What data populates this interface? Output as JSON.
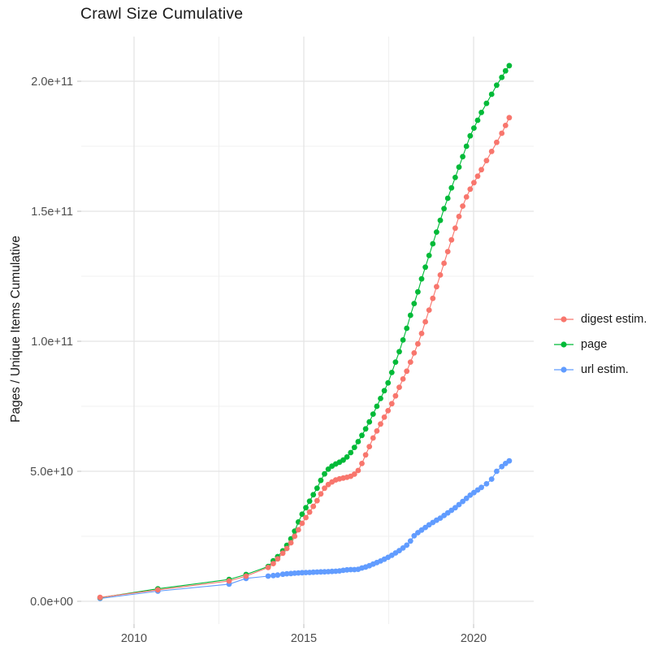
{
  "chart_data": {
    "type": "scatter",
    "title": "Crawl Size Cumulative",
    "xlabel": "",
    "ylabel": "Pages / Unique Items Cumulative",
    "legend_position": "right",
    "grid": true,
    "xlim": [
      2008.45,
      2021.77
    ],
    "ylim": [
      -10000000000,
      217000000000
    ],
    "x_ticks": [
      2010,
      2015,
      2020
    ],
    "x_tick_labels": [
      "2010",
      "2015",
      "2020"
    ],
    "x_minor_ticks": [
      2012.5,
      2017.5
    ],
    "y_tick_values": [
      0,
      50000000000,
      100000000000,
      150000000000,
      200000000000
    ],
    "y_ticks": [
      "0.0e+00",
      "5.0e+10",
      "1.0e+11",
      "1.5e+11",
      "2.0e+11"
    ],
    "y_minor_ticks": [
      25000000000,
      75000000000,
      125000000000,
      175000000000
    ],
    "series": [
      {
        "name": "digest estim.",
        "color": "#F8766D",
        "points": [
          [
            2009.0,
            1500000000.0
          ],
          [
            2010.7,
            4400000000.0
          ],
          [
            2012.8,
            7800000000.0
          ],
          [
            2013.3,
            9700000000.0
          ],
          [
            2013.95,
            13000000000.0
          ],
          [
            2014.1,
            14500000000.0
          ],
          [
            2014.23,
            16300000000.0
          ],
          [
            2014.38,
            18500000000.0
          ],
          [
            2014.5,
            20300000000.0
          ],
          [
            2014.62,
            22500000000.0
          ],
          [
            2014.73,
            25000000000.0
          ],
          [
            2014.84,
            27500000000.0
          ],
          [
            2014.95,
            30000000000.0
          ],
          [
            2015.06,
            32200000000.0
          ],
          [
            2015.17,
            34300000000.0
          ],
          [
            2015.28,
            36500000000.0
          ],
          [
            2015.39,
            38700000000.0
          ],
          [
            2015.5,
            41300000000.0
          ],
          [
            2015.61,
            43500000000.0
          ],
          [
            2015.72,
            44900000000.0
          ],
          [
            2015.83,
            45900000000.0
          ],
          [
            2015.94,
            46700000000.0
          ],
          [
            2016.05,
            47100000000.0
          ],
          [
            2016.16,
            47400000000.0
          ],
          [
            2016.27,
            47700000000.0
          ],
          [
            2016.38,
            48100000000.0
          ],
          [
            2016.49,
            48900000000.0
          ],
          [
            2016.6,
            50300000000.0
          ],
          [
            2016.71,
            53000000000.0
          ],
          [
            2016.82,
            56300000000.0
          ],
          [
            2016.93,
            59500000000.0
          ],
          [
            2017.04,
            62800000000.0
          ],
          [
            2017.15,
            65500000000.0
          ],
          [
            2017.26,
            68200000000.0
          ],
          [
            2017.37,
            70800000000.0
          ],
          [
            2017.48,
            73300000000.0
          ],
          [
            2017.59,
            76000000000.0
          ],
          [
            2017.7,
            79000000000.0
          ],
          [
            2017.81,
            82300000000.0
          ],
          [
            2017.92,
            85500000000.0
          ],
          [
            2018.03,
            88500000000.0
          ],
          [
            2018.14,
            92000000000.0
          ],
          [
            2018.25,
            95500000000.0
          ],
          [
            2018.36,
            99000000000.0
          ],
          [
            2018.47,
            103000000000.0
          ],
          [
            2018.58,
            107500000000.0
          ],
          [
            2018.69,
            112000000000.0
          ],
          [
            2018.8,
            116500000000.0
          ],
          [
            2018.91,
            121000000000.0
          ],
          [
            2019.02,
            125500000000.0
          ],
          [
            2019.13,
            130000000000.0
          ],
          [
            2019.24,
            134500000000.0
          ],
          [
            2019.35,
            139000000000.0
          ],
          [
            2019.46,
            143500000000.0
          ],
          [
            2019.57,
            148000000000.0
          ],
          [
            2019.68,
            152000000000.0
          ],
          [
            2019.79,
            155500000000.0
          ],
          [
            2019.9,
            158500000000.0
          ],
          [
            2020.01,
            161000000000.0
          ],
          [
            2020.12,
            163500000000.0
          ],
          [
            2020.23,
            166000000000.0
          ],
          [
            2020.38,
            169500000000.0
          ],
          [
            2020.53,
            173000000000.0
          ],
          [
            2020.68,
            176500000000.0
          ],
          [
            2020.83,
            180000000000.0
          ],
          [
            2020.94,
            183000000000.0
          ],
          [
            2021.05,
            186000000000.0
          ]
        ]
      },
      {
        "name": "page",
        "color": "#00BA38",
        "points": [
          [
            2009.0,
            1400000000.0
          ],
          [
            2010.7,
            4800000000.0
          ],
          [
            2012.8,
            8400000000.0
          ],
          [
            2013.3,
            10300000000.0
          ],
          [
            2013.95,
            13400000000.0
          ],
          [
            2014.1,
            15600000000.0
          ],
          [
            2014.23,
            17200000000.0
          ],
          [
            2014.38,
            19400000000.0
          ],
          [
            2014.5,
            21500000000.0
          ],
          [
            2014.62,
            24000000000.0
          ],
          [
            2014.73,
            27000000000.0
          ],
          [
            2014.84,
            30500000000.0
          ],
          [
            2014.95,
            33500000000.0
          ],
          [
            2015.06,
            36000000000.0
          ],
          [
            2015.17,
            38500000000.0
          ],
          [
            2015.28,
            41000000000.0
          ],
          [
            2015.39,
            43500000000.0
          ],
          [
            2015.5,
            46500000000.0
          ],
          [
            2015.61,
            49000000000.0
          ],
          [
            2015.72,
            50800000000.0
          ],
          [
            2015.83,
            52000000000.0
          ],
          [
            2015.94,
            52800000000.0
          ],
          [
            2016.05,
            53500000000.0
          ],
          [
            2016.16,
            54300000000.0
          ],
          [
            2016.27,
            55500000000.0
          ],
          [
            2016.38,
            57200000000.0
          ],
          [
            2016.49,
            59200000000.0
          ],
          [
            2016.6,
            61400000000.0
          ],
          [
            2016.71,
            63800000000.0
          ],
          [
            2016.82,
            66300000000.0
          ],
          [
            2016.93,
            69000000000.0
          ],
          [
            2017.04,
            72000000000.0
          ],
          [
            2017.15,
            75000000000.0
          ],
          [
            2017.26,
            78000000000.0
          ],
          [
            2017.37,
            81000000000.0
          ],
          [
            2017.48,
            84000000000.0
          ],
          [
            2017.59,
            88000000000.0
          ],
          [
            2017.7,
            92000000000.0
          ],
          [
            2017.81,
            96000000000.0
          ],
          [
            2017.92,
            100500000000.0
          ],
          [
            2018.03,
            105000000000.0
          ],
          [
            2018.14,
            110000000000.0
          ],
          [
            2018.25,
            114500000000.0
          ],
          [
            2018.36,
            119000000000.0
          ],
          [
            2018.47,
            124000000000.0
          ],
          [
            2018.58,
            128500000000.0
          ],
          [
            2018.69,
            133000000000.0
          ],
          [
            2018.8,
            137500000000.0
          ],
          [
            2018.91,
            142000000000.0
          ],
          [
            2019.02,
            146500000000.0
          ],
          [
            2019.13,
            151000000000.0
          ],
          [
            2019.24,
            155000000000.0
          ],
          [
            2019.35,
            159000000000.0
          ],
          [
            2019.46,
            163000000000.0
          ],
          [
            2019.57,
            167000000000.0
          ],
          [
            2019.68,
            171000000000.0
          ],
          [
            2019.79,
            175000000000.0
          ],
          [
            2019.9,
            179000000000.0
          ],
          [
            2020.01,
            182000000000.0
          ],
          [
            2020.12,
            185000000000.0
          ],
          [
            2020.23,
            188000000000.0
          ],
          [
            2020.38,
            191500000000.0
          ],
          [
            2020.53,
            195000000000.0
          ],
          [
            2020.68,
            198500000000.0
          ],
          [
            2020.83,
            201500000000.0
          ],
          [
            2020.94,
            204000000000.0
          ],
          [
            2021.05,
            206000000000.0
          ]
        ]
      },
      {
        "name": "url estim.",
        "color": "#619CFF",
        "points": [
          [
            2009.0,
            1100000000.0
          ],
          [
            2010.7,
            3900000000.0
          ],
          [
            2012.8,
            6600000000.0
          ],
          [
            2013.3,
            8800000000.0
          ],
          [
            2013.95,
            9700000000.0
          ],
          [
            2014.1,
            9900000000.0
          ],
          [
            2014.23,
            10100000000.0
          ],
          [
            2014.38,
            10400000000.0
          ],
          [
            2014.5,
            10600000000.0
          ],
          [
            2014.62,
            10700000000.0
          ],
          [
            2014.73,
            10800000000.0
          ],
          [
            2014.84,
            10900000000.0
          ],
          [
            2014.95,
            11000000000.0
          ],
          [
            2015.06,
            11050000000.0
          ],
          [
            2015.17,
            11100000000.0
          ],
          [
            2015.28,
            11200000000.0
          ],
          [
            2015.39,
            11250000000.0
          ],
          [
            2015.5,
            11300000000.0
          ],
          [
            2015.61,
            11350000000.0
          ],
          [
            2015.72,
            11400000000.0
          ],
          [
            2015.83,
            11500000000.0
          ],
          [
            2015.94,
            11550000000.0
          ],
          [
            2016.05,
            11700000000.0
          ],
          [
            2016.16,
            11900000000.0
          ],
          [
            2016.27,
            12100000000.0
          ],
          [
            2016.38,
            12200000000.0
          ],
          [
            2016.49,
            12200000000.0
          ],
          [
            2016.6,
            12300000000.0
          ],
          [
            2016.71,
            12800000000.0
          ],
          [
            2016.82,
            13200000000.0
          ],
          [
            2016.93,
            13700000000.0
          ],
          [
            2017.04,
            14300000000.0
          ],
          [
            2017.15,
            14900000000.0
          ],
          [
            2017.26,
            15500000000.0
          ],
          [
            2017.37,
            16200000000.0
          ],
          [
            2017.48,
            16900000000.0
          ],
          [
            2017.59,
            17700000000.0
          ],
          [
            2017.7,
            18600000000.0
          ],
          [
            2017.81,
            19500000000.0
          ],
          [
            2017.92,
            20500000000.0
          ],
          [
            2018.03,
            21600000000.0
          ],
          [
            2018.14,
            23200000000.0
          ],
          [
            2018.25,
            25200000000.0
          ],
          [
            2018.36,
            26400000000.0
          ],
          [
            2018.47,
            27400000000.0
          ],
          [
            2018.58,
            28400000000.0
          ],
          [
            2018.69,
            29400000000.0
          ],
          [
            2018.8,
            30300000000.0
          ],
          [
            2018.91,
            31200000000.0
          ],
          [
            2019.02,
            32000000000.0
          ],
          [
            2019.13,
            33000000000.0
          ],
          [
            2019.24,
            34000000000.0
          ],
          [
            2019.35,
            35000000000.0
          ],
          [
            2019.46,
            36000000000.0
          ],
          [
            2019.57,
            37200000000.0
          ],
          [
            2019.68,
            38400000000.0
          ],
          [
            2019.79,
            39600000000.0
          ],
          [
            2019.9,
            40800000000.0
          ],
          [
            2020.01,
            41800000000.0
          ],
          [
            2020.12,
            42800000000.0
          ],
          [
            2020.23,
            43800000000.0
          ],
          [
            2020.38,
            45200000000.0
          ],
          [
            2020.53,
            47000000000.0
          ],
          [
            2020.68,
            50000000000.0
          ],
          [
            2020.83,
            51800000000.0
          ],
          [
            2020.94,
            53000000000.0
          ],
          [
            2021.05,
            54000000000.0
          ]
        ]
      }
    ]
  }
}
